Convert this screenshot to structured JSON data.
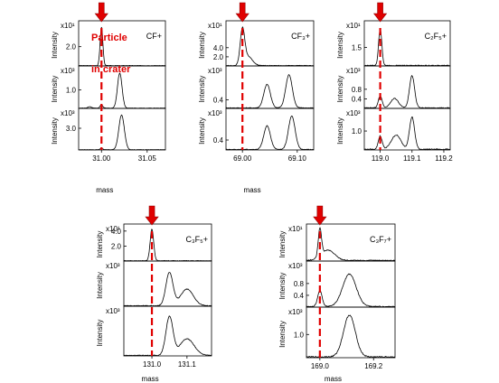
{
  "colors": {
    "marker": "#e00000",
    "trace": "#000000",
    "frame": "#000000"
  },
  "annotation": {
    "line1": "Particle",
    "line2": "in crater"
  },
  "chart_data": [
    {
      "type": "line",
      "ion": "CF+",
      "xlabel": "mass",
      "xlim": [
        30.975,
        31.07
      ],
      "xticks": [
        "31.00",
        "31.05"
      ],
      "xtick_values": [
        31.0,
        31.05
      ],
      "marker_mass": 31.0,
      "panels": [
        {
          "ylabel": "Intensity",
          "exponent": "x10¹",
          "ytick": "2.0",
          "ytick_value": 2.0,
          "ylim": [
            0,
            4.5
          ],
          "peaks": [
            {
              "x": 31.0,
              "h": 4.0,
              "w": 0.0015
            }
          ],
          "noise": 0.05
        },
        {
          "ylabel": "Intensity",
          "exponent": "x10³",
          "ytick": "1.0",
          "ytick_value": 1.0,
          "ylim": [
            0,
            2.2
          ],
          "peaks": [
            {
              "x": 30.987,
              "h": 0.08,
              "w": 0.002
            },
            {
              "x": 31.0,
              "h": 0.18,
              "w": 0.0015
            },
            {
              "x": 31.02,
              "h": 1.9,
              "w": 0.0025
            }
          ],
          "noise": 0.02
        },
        {
          "ylabel": "Intensity",
          "exponent": "x10³",
          "ytick": "3.0",
          "ytick_value": 3.0,
          "ylim": [
            0,
            5.5
          ],
          "peaks": [
            {
              "x": 31.0,
              "h": 0.2,
              "w": 0.0015
            },
            {
              "x": 31.022,
              "h": 4.8,
              "w": 0.003
            }
          ],
          "noise": 0.05
        }
      ]
    },
    {
      "type": "line",
      "ion": "CF₃+",
      "xlabel": "mass",
      "xlim": [
        68.97,
        69.13
      ],
      "xticks": [
        "69.00",
        "69.10"
      ],
      "xtick_values": [
        69.0,
        69.1
      ],
      "marker_mass": 69.0,
      "panels": [
        {
          "ylabel": "Intensity",
          "exponent": "x10¹",
          "ytick": "4.0",
          "ytick_value": 4.0,
          "ylim": [
            0,
            9.5
          ],
          "ytick2": "2.0",
          "ytick2_value": 2.0,
          "peaks": [
            {
              "x": 69.0,
              "h": 7.5,
              "w": 0.004
            },
            {
              "x": 69.01,
              "h": 2.0,
              "w": 0.008
            }
          ],
          "noise": 0.12
        },
        {
          "ylabel": "Intensity",
          "exponent": "x10³",
          "ytick": "0.4",
          "ytick_value": 0.4,
          "ylim": [
            0,
            1.9
          ],
          "peaks": [
            {
              "x": 69.045,
              "h": 1.1,
              "w": 0.006
            },
            {
              "x": 69.085,
              "h": 1.55,
              "w": 0.006
            }
          ],
          "noise": 0.03
        },
        {
          "ylabel": "Intensity",
          "exponent": "x10³",
          "ytick": "0.4",
          "ytick_value": 0.4,
          "ylim": [
            0,
            1.6
          ],
          "peaks": [
            {
              "x": 69.045,
              "h": 0.95,
              "w": 0.006
            },
            {
              "x": 69.09,
              "h": 1.35,
              "w": 0.006
            }
          ],
          "noise": 0.03
        }
      ]
    },
    {
      "type": "line",
      "ion": "C₂F₅+",
      "xlabel": "",
      "xlim": [
        118.95,
        119.22
      ],
      "xticks": [
        "119.0",
        "119.1",
        "119.2"
      ],
      "xtick_values": [
        119.0,
        119.1,
        119.2
      ],
      "marker_mass": 119.0,
      "panels": [
        {
          "ylabel": "Intensity",
          "exponent": "x10¹",
          "ytick": "1.5",
          "ytick_value": 1.5,
          "ylim": [
            0,
            3.5
          ],
          "peaks": [
            {
              "x": 119.0,
              "h": 3.0,
              "w": 0.005
            }
          ],
          "noise": 0.06
        },
        {
          "ylabel": "Intensity",
          "exponent": "x10³",
          "ytick": "0.8",
          "ytick_value": 0.8,
          "ylim": [
            0,
            1.7
          ],
          "ytick2": "0.4",
          "ytick2_value": 0.4,
          "peaks": [
            {
              "x": 119.0,
              "h": 0.5,
              "w": 0.006
            },
            {
              "x": 119.045,
              "h": 0.4,
              "w": 0.012
            },
            {
              "x": 119.1,
              "h": 1.35,
              "w": 0.008
            }
          ],
          "noise": 0.03
        },
        {
          "ylabel": "Intensity",
          "exponent": "x10³",
          "ytick": "1.0",
          "ytick_value": 1.0,
          "ylim": [
            0,
            2.1
          ],
          "peaks": [
            {
              "x": 119.0,
              "h": 0.7,
              "w": 0.006
            },
            {
              "x": 119.05,
              "h": 0.75,
              "w": 0.015
            },
            {
              "x": 119.1,
              "h": 1.7,
              "w": 0.008
            }
          ],
          "noise": 0.05
        }
      ]
    },
    {
      "type": "line",
      "ion": "C₃F₅+",
      "xlabel": "mass",
      "xlim": [
        130.92,
        131.17
      ],
      "xticks": [
        "131.0",
        "131.1"
      ],
      "xtick_values": [
        131.0,
        131.1
      ],
      "marker_mass": 131.0,
      "panels": [
        {
          "ylabel": "Intensity",
          "exponent": "x10¹",
          "ytick": "2.0",
          "ytick_value": 2.0,
          "ylim": [
            0,
            4.7
          ],
          "ytick2": "4.0",
          "ytick2_value": 4.0,
          "peaks": [
            {
              "x": 131.0,
              "h": 4.2,
              "w": 0.005
            }
          ],
          "noise": 0.06
        },
        {
          "ylabel": "Intensity",
          "exponent": "x10³",
          "ytick": "",
          "ytick_value": 0,
          "ylim": [
            0,
            1.3
          ],
          "peaks": [
            {
              "x": 131.05,
              "h": 1.0,
              "w": 0.01
            },
            {
              "x": 131.1,
              "h": 0.5,
              "w": 0.018
            }
          ],
          "noise": 0.02
        },
        {
          "ylabel": "Intensity",
          "exponent": "x10³",
          "ytick": "",
          "ytick_value": 0,
          "ylim": [
            0,
            1.3
          ],
          "peaks": [
            {
              "x": 131.05,
              "h": 1.05,
              "w": 0.01
            },
            {
              "x": 131.1,
              "h": 0.45,
              "w": 0.02
            }
          ],
          "noise": 0.02
        }
      ]
    },
    {
      "type": "line",
      "ion": "C₃F₇+",
      "xlabel": "mass",
      "xlim": [
        168.95,
        169.28
      ],
      "xticks": [
        "169.0",
        "169.2"
      ],
      "xtick_values": [
        169.0,
        169.2
      ],
      "marker_mass": 169.0,
      "panels": [
        {
          "ylabel": "Intensity",
          "exponent": "x10¹",
          "ytick": "",
          "ytick_value": 0,
          "ylim": [
            0,
            1.2
          ],
          "peaks": [
            {
              "x": 169.0,
              "h": 0.95,
              "w": 0.006
            },
            {
              "x": 169.03,
              "h": 0.35,
              "w": 0.025
            }
          ],
          "noise": 0.03
        },
        {
          "ylabel": "Intensity",
          "exponent": "x10³",
          "ytick": "0.4",
          "ytick_value": 0.4,
          "ylim": [
            0,
            1.5
          ],
          "ytick2": "0.8",
          "ytick2_value": 0.8,
          "peaks": [
            {
              "x": 169.0,
              "h": 0.55,
              "w": 0.008
            },
            {
              "x": 169.11,
              "h": 1.1,
              "w": 0.025
            }
          ],
          "noise": 0.03
        },
        {
          "ylabel": "Intensity",
          "exponent": "x10³",
          "ytick": "1.0",
          "ytick_value": 1.0,
          "ylim": [
            0,
            2.1
          ],
          "peaks": [
            {
              "x": 169.11,
              "h": 1.8,
              "w": 0.022
            }
          ],
          "noise": 0.05
        }
      ]
    }
  ]
}
